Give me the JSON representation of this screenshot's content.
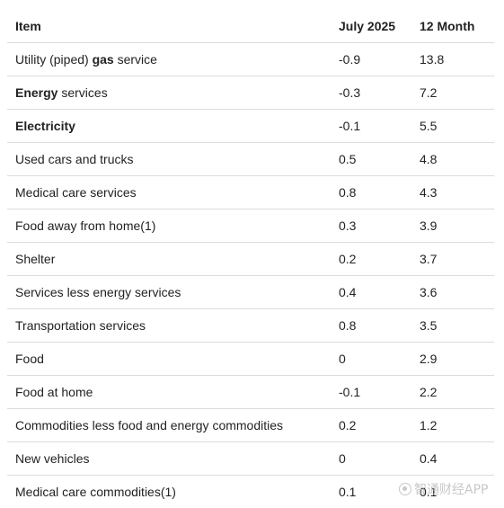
{
  "table": {
    "headers": {
      "item": "Item",
      "month": "July 2025",
      "yoy": "12 Month"
    },
    "rows": [
      {
        "pre": "Utility (piped) ",
        "bold": "gas",
        "post": " service",
        "month": "-0.9",
        "yoy": "13.8"
      },
      {
        "pre": "",
        "bold": "Energy",
        "post": " services",
        "month": "-0.3",
        "yoy": "7.2"
      },
      {
        "pre": "",
        "bold": "Electricity",
        "post": "",
        "month": "-0.1",
        "yoy": "5.5"
      },
      {
        "pre": "Used cars and trucks",
        "bold": "",
        "post": "",
        "month": "0.5",
        "yoy": "4.8"
      },
      {
        "pre": "Medical care services",
        "bold": "",
        "post": "",
        "month": "0.8",
        "yoy": "4.3"
      },
      {
        "pre": "Food away from home(1)",
        "bold": "",
        "post": "",
        "month": "0.3",
        "yoy": "3.9"
      },
      {
        "pre": "Shelter",
        "bold": "",
        "post": "",
        "month": "0.2",
        "yoy": "3.7"
      },
      {
        "pre": "Services less energy services",
        "bold": "",
        "post": "",
        "month": "0.4",
        "yoy": "3.6"
      },
      {
        "pre": "Transportation services",
        "bold": "",
        "post": "",
        "month": "0.8",
        "yoy": "3.5"
      },
      {
        "pre": "Food",
        "bold": "",
        "post": "",
        "month": "0",
        "yoy": "2.9"
      },
      {
        "pre": "Food at home",
        "bold": "",
        "post": "",
        "month": "-0.1",
        "yoy": "2.2"
      },
      {
        "pre": "Commodities less food and energy commodities",
        "bold": "",
        "post": "",
        "month": "0.2",
        "yoy": "1.2"
      },
      {
        "pre": "New vehicles",
        "bold": "",
        "post": "",
        "month": "0",
        "yoy": "0.4"
      },
      {
        "pre": "Medical care commodities(1)",
        "bold": "",
        "post": "",
        "month": "0.1",
        "yoy": "0.1"
      }
    ]
  },
  "watermark": {
    "text": "智通财经APP",
    "color": "#c8c8c8"
  }
}
